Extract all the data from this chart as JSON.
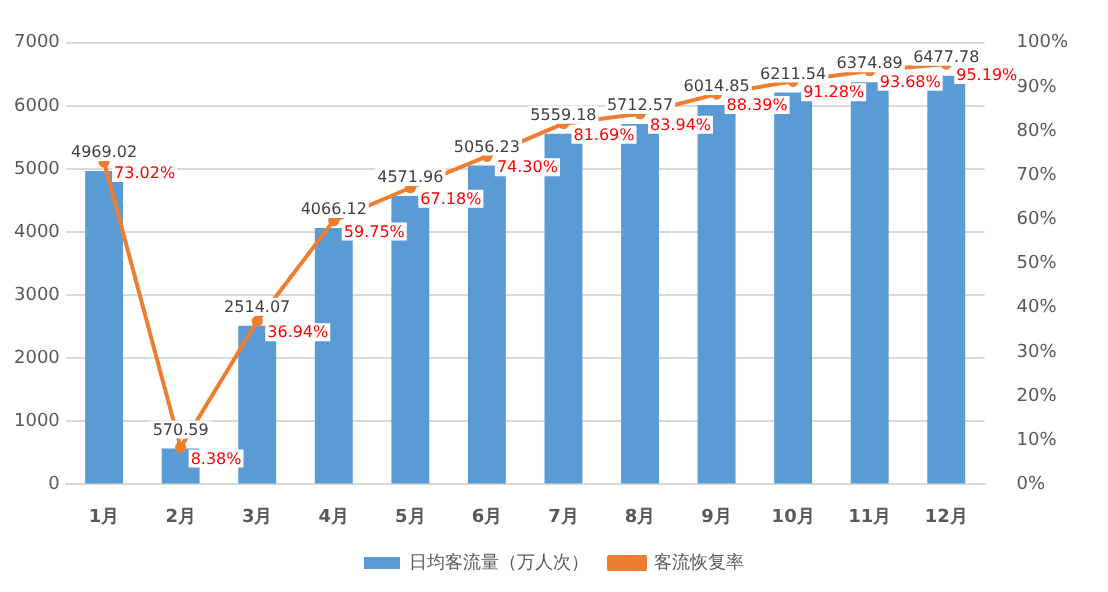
{
  "chart_data": {
    "type": "bar",
    "categories": [
      "1月",
      "2月",
      "3月",
      "4月",
      "5月",
      "6月",
      "7月",
      "8月",
      "9月",
      "10月",
      "11月",
      "12月"
    ],
    "series": [
      {
        "name": "日均客流量（万人次）",
        "color": "#5b9bd5",
        "values": [
          4969.02,
          570.59,
          2514.07,
          4066.12,
          4571.96,
          5056.23,
          5559.18,
          5712.57,
          6014.85,
          6211.54,
          6374.89,
          6477.78
        ],
        "value_labels": [
          "4969.02",
          "570.59",
          "2514.07",
          "4066.12",
          "4571.96",
          "5056.23",
          "5559.18",
          "5712.57",
          "6014.85",
          "6211.54",
          "6374.89",
          "6477.78"
        ]
      },
      {
        "name": "客流恢复率",
        "type": "line",
        "axis": "y2",
        "color": "#ed7d31",
        "values": [
          73.02,
          8.38,
          36.94,
          59.75,
          67.18,
          74.3,
          81.69,
          83.94,
          88.39,
          91.28,
          93.68,
          95.19
        ],
        "value_labels": [
          "73.02%",
          "8.38%",
          "36.94%",
          "59.75%",
          "67.18%",
          "74.30%",
          "81.69%",
          "83.94%",
          "88.39%",
          "91.28%",
          "93.68%",
          "95.19%"
        ]
      }
    ],
    "ylim": [
      0,
      7000
    ],
    "yticks": [
      0,
      1000,
      2000,
      3000,
      4000,
      5000,
      6000,
      7000
    ],
    "y2lim": [
      0,
      100
    ],
    "y2ticks": [
      {
        "value": 0,
        "label": "0%"
      },
      {
        "value": 10,
        "label": "10%"
      },
      {
        "value": 20,
        "label": "20%"
      },
      {
        "value": 30,
        "label": "30%"
      },
      {
        "value": 40,
        "label": "40%"
      },
      {
        "value": 50,
        "label": "50%"
      },
      {
        "value": 60,
        "label": "60%"
      },
      {
        "value": 70,
        "label": "70%"
      },
      {
        "value": 80,
        "label": "80%"
      },
      {
        "value": 90,
        "label": "90%"
      },
      {
        "value": 100,
        "label": "100%"
      }
    ],
    "grid": "y",
    "legend": "bottom",
    "marker": "circle",
    "line_style": "solid"
  }
}
